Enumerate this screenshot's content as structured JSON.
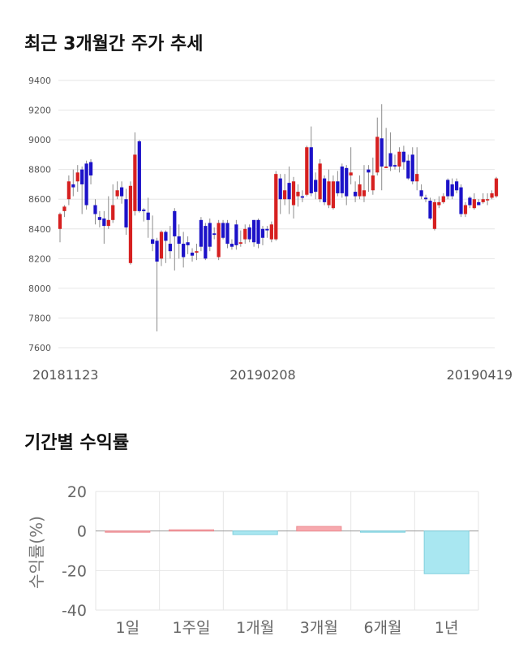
{
  "sections": {
    "price_title": "최근 3개월간 주가 추세",
    "return_title": "기간별 수익률"
  },
  "colors": {
    "up": "#d62020",
    "down": "#1c12c8",
    "wick": "#8c8c8c",
    "grid": "#e6e6e6",
    "pos_bar": "#f7a9ae",
    "neg_bar": "#a9e7f1"
  },
  "chart_data": [
    {
      "type": "candlestick",
      "title": "최근 3개월간 주가 추세",
      "ylim": [
        7600,
        9400
      ],
      "y_ticks": [
        "7600",
        "7800",
        "8000",
        "8200",
        "8400",
        "8600",
        "8800",
        "9000",
        "9200",
        "9400"
      ],
      "x_tick_labels": [
        "20181123",
        "20190208",
        "20190419"
      ],
      "x_tick_index": [
        0,
        46,
        90
      ],
      "grid": true,
      "candles": [
        [
          8400,
          8500,
          8310,
          8510
        ],
        [
          8520,
          8550,
          8480,
          8560
        ],
        [
          8600,
          8720,
          8560,
          8760
        ],
        [
          8700,
          8680,
          8620,
          8800
        ],
        [
          8720,
          8780,
          8650,
          8830
        ],
        [
          8800,
          8700,
          8500,
          8820
        ],
        [
          8840,
          8560,
          8530,
          8860
        ],
        [
          8850,
          8760,
          8700,
          8870
        ],
        [
          8560,
          8500,
          8430,
          8600
        ],
        [
          8480,
          8460,
          8410,
          8520
        ],
        [
          8470,
          8420,
          8300,
          8520
        ],
        [
          8420,
          8460,
          8400,
          8620
        ],
        [
          8460,
          8560,
          8440,
          8700
        ],
        [
          8620,
          8660,
          8600,
          8720
        ],
        [
          8680,
          8620,
          8570,
          8720
        ],
        [
          8600,
          8410,
          8360,
          8670
        ],
        [
          8170,
          8690,
          8160,
          8720
        ],
        [
          8520,
          8900,
          8490,
          9050
        ],
        [
          8990,
          8520,
          8510,
          9000
        ],
        [
          8530,
          8520,
          8450,
          8540
        ],
        [
          8510,
          8460,
          8340,
          8610
        ],
        [
          8330,
          8300,
          8250,
          8490
        ],
        [
          8320,
          8180,
          7710,
          8340
        ],
        [
          8200,
          8380,
          8150,
          8390
        ],
        [
          8380,
          8320,
          8170,
          8390
        ],
        [
          8300,
          8250,
          8200,
          8420
        ],
        [
          8520,
          8350,
          8120,
          8540
        ],
        [
          8350,
          8300,
          8200,
          8430
        ],
        [
          8300,
          8210,
          8140,
          8380
        ],
        [
          8310,
          8290,
          8230,
          8350
        ],
        [
          8240,
          8220,
          8180,
          8270
        ],
        [
          8240,
          8250,
          8190,
          8300
        ],
        [
          8460,
          8280,
          8250,
          8480
        ],
        [
          8420,
          8200,
          8190,
          8440
        ],
        [
          8440,
          8280,
          8250,
          8470
        ],
        [
          8370,
          8360,
          8330,
          8410
        ],
        [
          8210,
          8440,
          8190,
          8460
        ],
        [
          8440,
          8340,
          8330,
          8460
        ],
        [
          8440,
          8300,
          8270,
          8460
        ],
        [
          8300,
          8280,
          8260,
          8330
        ],
        [
          8430,
          8290,
          8260,
          8460
        ],
        [
          8300,
          8310,
          8280,
          8390
        ],
        [
          8330,
          8400,
          8300,
          8430
        ],
        [
          8410,
          8330,
          8310,
          8430
        ],
        [
          8460,
          8310,
          8280,
          8460
        ],
        [
          8460,
          8300,
          8270,
          8470
        ],
        [
          8400,
          8340,
          8290,
          8420
        ],
        [
          8400,
          8390,
          8340,
          8420
        ],
        [
          8330,
          8430,
          8310,
          8450
        ],
        [
          8330,
          8770,
          8320,
          8790
        ],
        [
          8740,
          8600,
          8500,
          8770
        ],
        [
          8600,
          8660,
          8560,
          8770
        ],
        [
          8710,
          8600,
          8500,
          8820
        ],
        [
          8560,
          8720,
          8470,
          8750
        ],
        [
          8620,
          8650,
          8550,
          8700
        ],
        [
          8620,
          8610,
          8580,
          8660
        ],
        [
          8630,
          8950,
          8620,
          8960
        ],
        [
          8950,
          8640,
          8620,
          9090
        ],
        [
          8730,
          8650,
          8600,
          8780
        ],
        [
          8600,
          8840,
          8580,
          8870
        ],
        [
          8740,
          8580,
          8560,
          8760
        ],
        [
          8560,
          8720,
          8540,
          8800
        ],
        [
          8540,
          8720,
          8530,
          8760
        ],
        [
          8720,
          8640,
          8620,
          8790
        ],
        [
          8820,
          8640,
          8610,
          8840
        ],
        [
          8810,
          8620,
          8560,
          8830
        ],
        [
          8760,
          8780,
          8700,
          8950
        ],
        [
          8650,
          8620,
          8580,
          8720
        ],
        [
          8620,
          8700,
          8600,
          8760
        ],
        [
          8620,
          8660,
          8580,
          8830
        ],
        [
          8800,
          8780,
          8650,
          8830
        ],
        [
          8660,
          8760,
          8630,
          8880
        ],
        [
          8780,
          9020,
          8760,
          9150
        ],
        [
          9010,
          8820,
          8660,
          9240
        ],
        [
          8810,
          8820,
          8810,
          9080
        ],
        [
          8910,
          8820,
          8790,
          9050
        ],
        [
          8830,
          8820,
          8800,
          8900
        ],
        [
          8820,
          8920,
          8780,
          8950
        ],
        [
          8920,
          8850,
          8800,
          8960
        ],
        [
          8860,
          8740,
          8730,
          8900
        ],
        [
          8900,
          8720,
          8700,
          8950
        ],
        [
          8720,
          8770,
          8660,
          8950
        ],
        [
          8660,
          8620,
          8600,
          8700
        ],
        [
          8610,
          8600,
          8580,
          8630
        ],
        [
          8590,
          8470,
          8460,
          8610
        ],
        [
          8400,
          8580,
          8390,
          8600
        ],
        [
          8560,
          8580,
          8540,
          8620
        ],
        [
          8580,
          8620,
          8570,
          8640
        ],
        [
          8730,
          8620,
          8600,
          8740
        ],
        [
          8700,
          8620,
          8600,
          8740
        ],
        [
          8720,
          8660,
          8640,
          8740
        ],
        [
          8680,
          8500,
          8480,
          8700
        ],
        [
          8500,
          8560,
          8480,
          8580
        ],
        [
          8610,
          8560,
          8540,
          8620
        ],
        [
          8540,
          8600,
          8530,
          8640
        ],
        [
          8580,
          8560,
          8560,
          8600
        ],
        [
          8580,
          8600,
          8570,
          8640
        ],
        [
          8600,
          8600,
          8560,
          8640
        ],
        [
          8610,
          8640,
          8600,
          8660
        ],
        [
          8620,
          8740,
          8610,
          8750
        ]
      ]
    },
    {
      "type": "bar",
      "title": "기간별 수익률",
      "categories": [
        "1일",
        "1주일",
        "1개월",
        "3개월",
        "6개월",
        "1년"
      ],
      "values": [
        0,
        0.6,
        -1.8,
        2.3,
        -0.3,
        -21.6
      ],
      "ylabel": "수익률(%)",
      "ylim": [
        -40,
        20
      ],
      "y_ticks": [
        "20",
        "0",
        "-20",
        "-40"
      ],
      "grid": true
    }
  ]
}
